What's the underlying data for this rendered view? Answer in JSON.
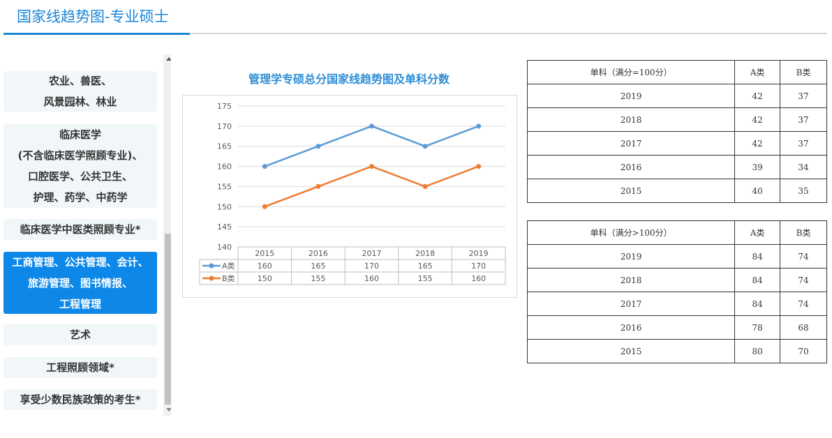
{
  "header": {
    "title": "国家线趋势图-专业硕士"
  },
  "sidebar": {
    "items": [
      {
        "lines": [
          "农业、兽医、",
          "风景园林、林业"
        ],
        "active": false
      },
      {
        "lines": [
          "临床医学",
          "(不含临床医学照顾专业)、",
          "口腔医学、公共卫生、",
          "护理、药学、中药学"
        ],
        "active": false
      },
      {
        "lines": [
          "临床医学中医类照顾专业*"
        ],
        "active": false
      },
      {
        "lines": [
          "工商管理、公共管理、会计、",
          "旅游管理、图书情报、",
          "工程管理"
        ],
        "active": true
      },
      {
        "lines": [
          "艺术"
        ],
        "active": false
      },
      {
        "lines": [
          "工程照顾领域*"
        ],
        "active": false
      },
      {
        "lines": [
          "享受少数民族政策的考生*"
        ],
        "active": false
      }
    ]
  },
  "chart_data": {
    "type": "line",
    "title": "管理学专硕总分国家线趋势图及单科分数",
    "categories": [
      "2015",
      "2016",
      "2017",
      "2018",
      "2019"
    ],
    "series": [
      {
        "name": "A类",
        "values": [
          160,
          165,
          170,
          165,
          170
        ],
        "color": "#5b9bd5"
      },
      {
        "name": "B类",
        "values": [
          150,
          155,
          160,
          155,
          160
        ],
        "color": "#ed7d31"
      }
    ],
    "ylim": [
      140,
      175
    ],
    "yticks": [
      140,
      145,
      150,
      155,
      160,
      165,
      170,
      175
    ],
    "grid": true,
    "legend": "data-table-below"
  },
  "tables": [
    {
      "header": [
        "单科（满分=100分）",
        "A类",
        "B类"
      ],
      "rows": [
        [
          "2019",
          "42",
          "37"
        ],
        [
          "2018",
          "42",
          "37"
        ],
        [
          "2017",
          "42",
          "37"
        ],
        [
          "2016",
          "39",
          "34"
        ],
        [
          "2015",
          "40",
          "35"
        ]
      ]
    },
    {
      "header": [
        "单科（满分>100分）",
        "A类",
        "B类"
      ],
      "rows": [
        [
          "2019",
          "84",
          "74"
        ],
        [
          "2018",
          "84",
          "74"
        ],
        [
          "2017",
          "84",
          "74"
        ],
        [
          "2016",
          "78",
          "68"
        ],
        [
          "2015",
          "80",
          "70"
        ]
      ]
    }
  ]
}
